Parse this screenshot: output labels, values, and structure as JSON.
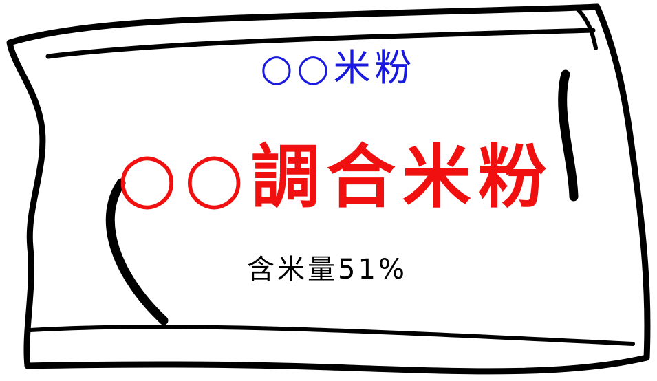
{
  "bag": {
    "brand_line": "○○米粉",
    "product_name": "○○調合米粉",
    "rice_content": "含米量51%"
  },
  "colors": {
    "brand_line": "#1a1adf",
    "product_name": "#f01010",
    "rice_content": "#000000",
    "outline": "#000000",
    "background": "#ffffff"
  }
}
